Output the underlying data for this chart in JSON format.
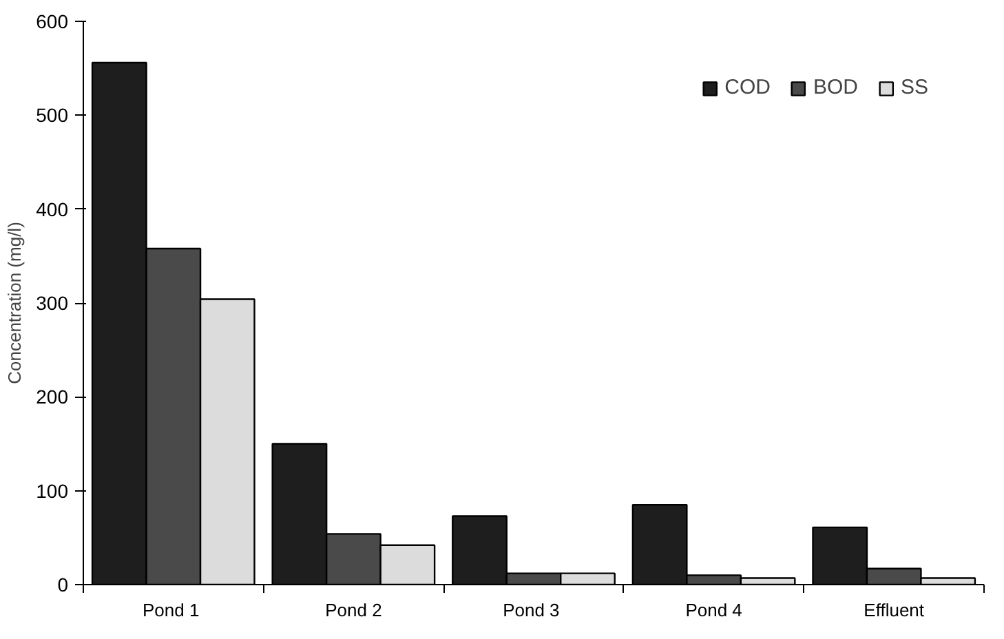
{
  "chart_data": {
    "type": "bar",
    "ylabel": "Concentration (mg/l)",
    "categories": [
      "Pond  1",
      "Pond 2",
      "Pond  3",
      "Pond 4",
      "Effluent"
    ],
    "series": [
      {
        "name": "COD",
        "color": "#1e1e1e",
        "values": [
          556,
          150,
          73,
          85,
          61
        ]
      },
      {
        "name": "BOD",
        "color": "#4a4a4a",
        "values": [
          358,
          54,
          12,
          10,
          17
        ]
      },
      {
        "name": "SS",
        "color": "#dcdcdc",
        "values": [
          304,
          42,
          12,
          7,
          7
        ]
      }
    ],
    "ylim": [
      0,
      600
    ],
    "yticks": [
      0,
      100,
      200,
      300,
      400,
      500,
      600
    ],
    "grid": false,
    "legend": "top right"
  }
}
